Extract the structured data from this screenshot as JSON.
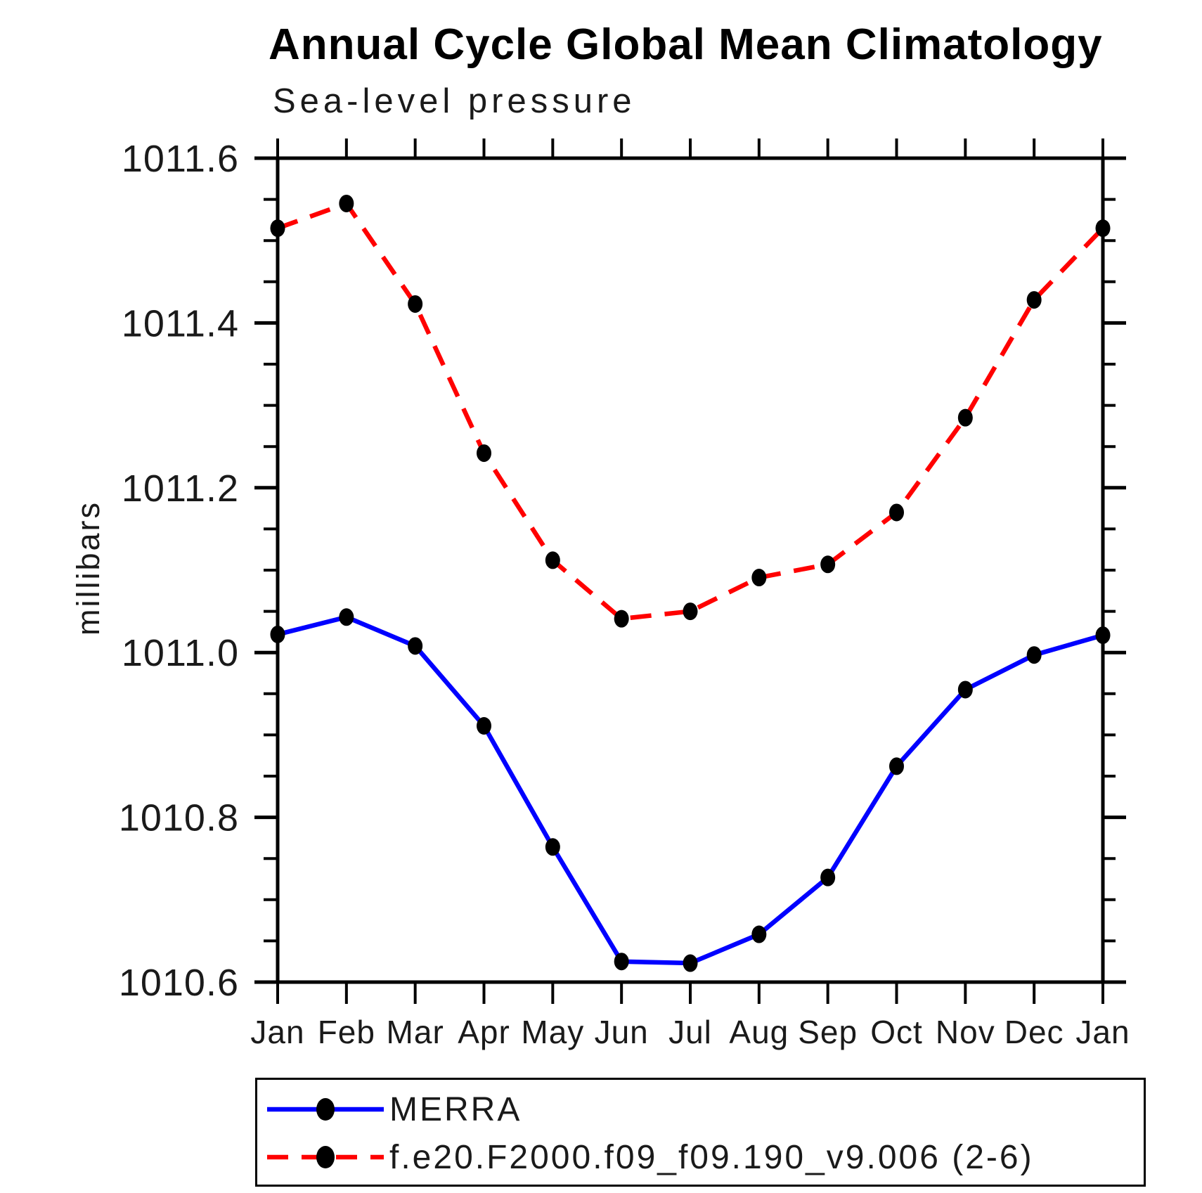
{
  "header": {
    "title": "Annual Cycle Global Mean Climatology",
    "subtitle": "Sea-level pressure"
  },
  "chart_data": {
    "type": "line",
    "title": "Annual Cycle Global Mean Climatology",
    "subtitle": "Sea-level pressure",
    "xlabel": "",
    "ylabel": "millibars",
    "categories": [
      "Jan",
      "Feb",
      "Mar",
      "Apr",
      "May",
      "Jun",
      "Jul",
      "Aug",
      "Sep",
      "Oct",
      "Nov",
      "Dec",
      "Jan"
    ],
    "ylim": [
      1010.6,
      1011.6
    ],
    "y_major_step": 0.2,
    "y_minor_step": 0.05,
    "grid": false,
    "legend_position": "bottom-left",
    "frame_color": "#000000",
    "marker": "filled-circle",
    "marker_color": "#000000",
    "series": [
      {
        "name": "MERRA",
        "color": "#0000ff",
        "line_style": "solid",
        "dash_pattern": "",
        "values": [
          1011.022,
          1011.043,
          1011.008,
          1010.911,
          1010.764,
          1010.625,
          1010.623,
          1010.658,
          1010.727,
          1010.862,
          1010.955,
          1010.997,
          1011.021
        ]
      },
      {
        "name": "f.e20.F2000.f09_f09.190_v9.006 (2-6)",
        "color": "#ff0000",
        "line_style": "dashed",
        "dash_pattern": "30 19",
        "values": [
          1011.515,
          1011.545,
          1011.423,
          1011.242,
          1011.112,
          1011.041,
          1011.05,
          1011.091,
          1011.107,
          1011.17,
          1011.285,
          1011.428,
          1011.515
        ]
      }
    ]
  }
}
